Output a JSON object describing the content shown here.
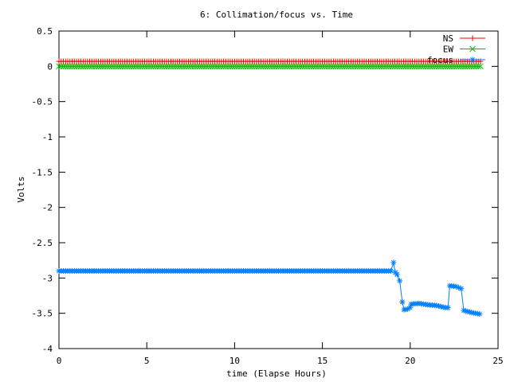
{
  "chart_data": {
    "type": "line",
    "title": "6: Collimation/focus vs. Time",
    "xlabel": "time (Elapse Hours)",
    "ylabel": "Volts",
    "xlim": [
      0,
      25
    ],
    "ylim": [
      -4,
      0.5
    ],
    "grid": false,
    "legend_position": "top-right",
    "xticks": [
      0,
      5,
      10,
      15,
      20,
      25
    ],
    "xtick_labels": [
      "0",
      "5",
      "10",
      "15",
      "20",
      "25"
    ],
    "yticks": [
      0.5,
      0,
      -0.5,
      -1,
      -1.5,
      -2,
      -2.5,
      -3,
      -3.5,
      -4
    ],
    "ytick_labels": [
      "0.5",
      "0",
      "-0.5",
      "-1",
      "-1.5",
      "-2",
      "-2.5",
      "-3",
      "-3.5",
      "-4"
    ],
    "series": [
      {
        "name": "NS",
        "color": "#ff0000",
        "marker": "plus",
        "points": [
          [
            0,
            0.07
          ],
          [
            24,
            0.07
          ]
        ]
      },
      {
        "name": "EW",
        "color": "#00c000",
        "marker": "cross",
        "points": [
          [
            0,
            0.0
          ],
          [
            24,
            0.0
          ]
        ]
      },
      {
        "name": "focus",
        "color": "#0080ff",
        "marker": "star",
        "points": [
          [
            0,
            -2.9
          ],
          [
            2,
            -2.9
          ],
          [
            4,
            -2.9
          ],
          [
            6,
            -2.9
          ],
          [
            8,
            -2.9
          ],
          [
            10,
            -2.9
          ],
          [
            12,
            -2.9
          ],
          [
            14,
            -2.9
          ],
          [
            16,
            -2.9
          ],
          [
            18,
            -2.9
          ],
          [
            18.9,
            -2.9
          ],
          [
            19.05,
            -2.78
          ],
          [
            19.15,
            -2.92
          ],
          [
            19.25,
            -2.95
          ],
          [
            19.4,
            -3.04
          ],
          [
            19.55,
            -3.34
          ],
          [
            19.65,
            -3.45
          ],
          [
            19.85,
            -3.44
          ],
          [
            20.0,
            -3.42
          ],
          [
            20.05,
            -3.37
          ],
          [
            20.5,
            -3.36
          ],
          [
            21.0,
            -3.38
          ],
          [
            21.5,
            -3.39
          ],
          [
            22.0,
            -3.42
          ],
          [
            22.15,
            -3.42
          ],
          [
            22.25,
            -3.11
          ],
          [
            22.6,
            -3.12
          ],
          [
            22.9,
            -3.15
          ],
          [
            23.05,
            -3.46
          ],
          [
            23.5,
            -3.49
          ],
          [
            23.95,
            -3.51
          ]
        ]
      }
    ]
  }
}
